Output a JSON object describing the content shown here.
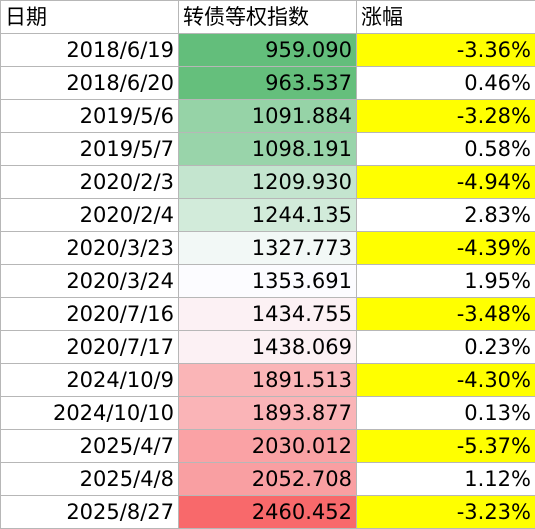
{
  "headers": {
    "date": "日期",
    "index": "转债等权指数",
    "change": "涨幅"
  },
  "heat_colors": {
    "low": "#63be7b",
    "mid": "#fcfcff",
    "high": "#f8696b"
  },
  "highlight_color": "#ffff00",
  "rows": [
    {
      "date": "2018/6/19",
      "index": "959.090",
      "change": "-3.36%"
    },
    {
      "date": "2018/6/20",
      "index": "963.537",
      "change": "0.46%"
    },
    {
      "date": "2019/5/6",
      "index": "1091.884",
      "change": "-3.28%"
    },
    {
      "date": "2019/5/7",
      "index": "1098.191",
      "change": "0.58%"
    },
    {
      "date": "2020/2/3",
      "index": "1209.930",
      "change": "-4.94%"
    },
    {
      "date": "2020/2/4",
      "index": "1244.135",
      "change": "2.83%"
    },
    {
      "date": "2020/3/23",
      "index": "1327.773",
      "change": "-4.39%"
    },
    {
      "date": "2020/3/24",
      "index": "1353.691",
      "change": "1.95%"
    },
    {
      "date": "2020/7/16",
      "index": "1434.755",
      "change": "-3.48%"
    },
    {
      "date": "2020/7/17",
      "index": "1438.069",
      "change": "0.23%"
    },
    {
      "date": "2024/10/9",
      "index": "1891.513",
      "change": "-4.30%"
    },
    {
      "date": "2024/10/10",
      "index": "1893.877",
      "change": "0.13%"
    },
    {
      "date": "2025/4/7",
      "index": "2030.012",
      "change": "-5.37%"
    },
    {
      "date": "2025/4/8",
      "index": "2052.708",
      "change": "1.12%"
    },
    {
      "date": "2025/8/27",
      "index": "2460.452",
      "change": "-3.23%"
    }
  ]
}
